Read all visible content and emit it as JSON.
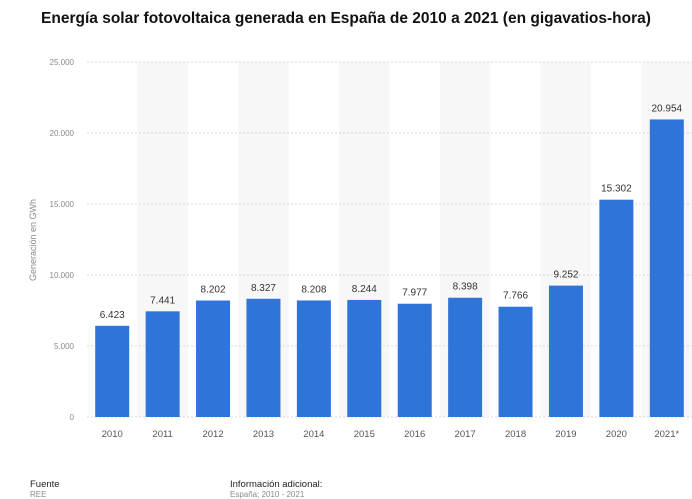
{
  "chart_data": {
    "type": "bar",
    "title": "Energía solar fotovoltaica generada en España de 2010 a 2021 (en gigavatios-hora)",
    "xlabel": "",
    "ylabel": "Generación en GWh",
    "categories": [
      "2010",
      "2011",
      "2012",
      "2013",
      "2014",
      "2015",
      "2016",
      "2017",
      "2018",
      "2019",
      "2020",
      "2021*"
    ],
    "values": [
      6423,
      7441,
      8202,
      8327,
      8208,
      8244,
      7977,
      8398,
      7766,
      9252,
      15302,
      20954
    ],
    "value_labels": [
      "6.423",
      "7.441",
      "8.202",
      "8.327",
      "8.208",
      "8.244",
      "7.977",
      "8.398",
      "7.766",
      "9.252",
      "15.302",
      "20.954"
    ],
    "ylim": [
      0,
      25000
    ],
    "yticks": [
      0,
      5000,
      10000,
      15000,
      20000,
      25000
    ],
    "ytick_labels": [
      "0",
      "5.000",
      "10.000",
      "15.000",
      "20.000",
      "25.000"
    ],
    "grid": true,
    "bar_color": "#2f74d9"
  },
  "footer": {
    "source_label": "Fuente",
    "source_value": "REE",
    "info_label": "Información adicional:",
    "info_value": "España; 2010 - 2021"
  }
}
